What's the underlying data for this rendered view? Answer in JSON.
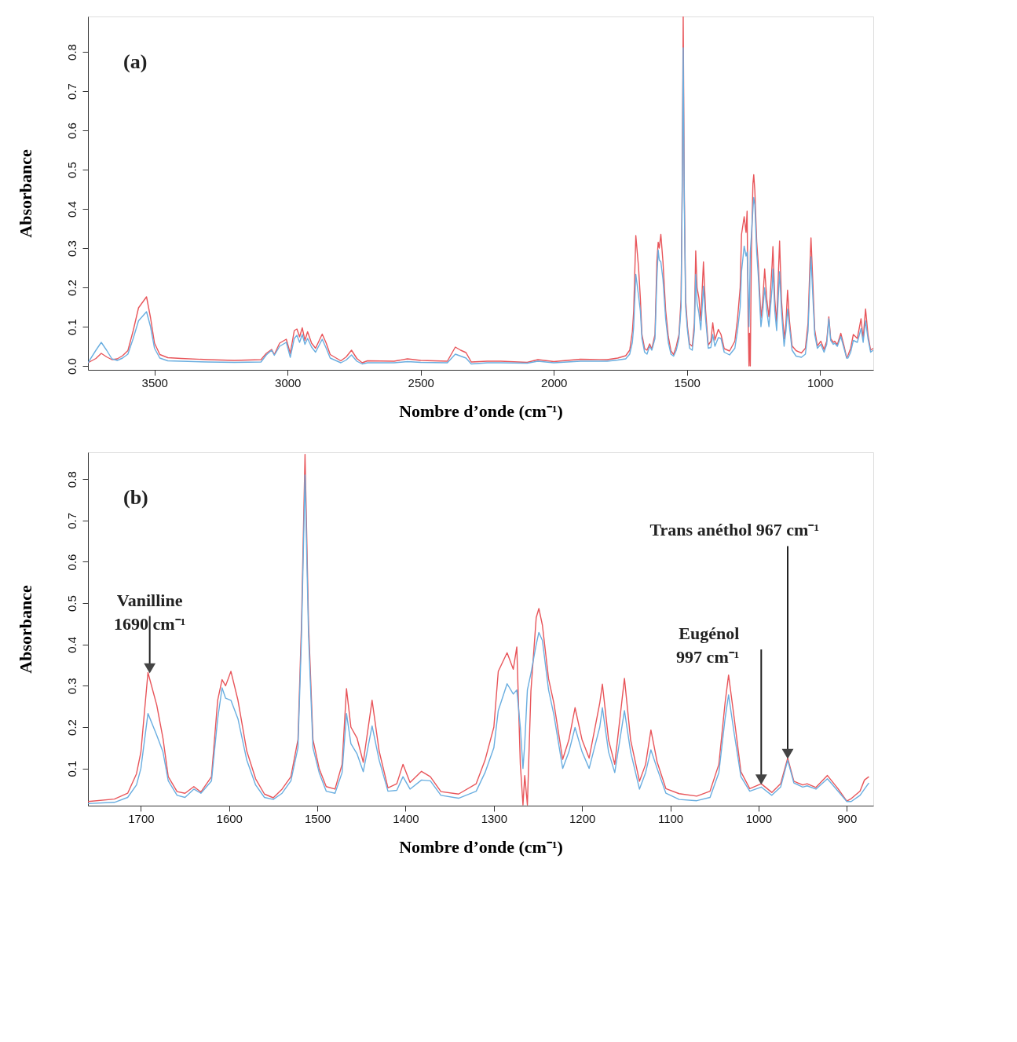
{
  "chart_data": [
    {
      "type": "line",
      "xlabel": "Nombre d’onde (cm⁻¹)",
      "ylabel": "Absorbance",
      "xlim": [
        3750,
        800
      ],
      "ylim": [
        -0.01,
        0.89
      ],
      "xticks": [
        3500,
        3000,
        2500,
        2000,
        1500,
        1000
      ],
      "yticks": [
        {
          "value": 0,
          "label": "0.0"
        },
        0.1,
        0.2,
        0.3,
        0.4,
        0.5,
        0.6,
        0.7,
        0.8
      ],
      "annotations": [
        "(a)"
      ],
      "x": [
        3750,
        3720,
        3700,
        3680,
        3660,
        3640,
        3620,
        3600,
        3580,
        3560,
        3530,
        3515,
        3500,
        3480,
        3450,
        3400,
        3300,
        3200,
        3100,
        3080,
        3060,
        3050,
        3030,
        3005,
        2990,
        2975,
        2965,
        2955,
        2945,
        2935,
        2925,
        2910,
        2895,
        2870,
        2855,
        2840,
        2800,
        2780,
        2760,
        2740,
        2720,
        2700,
        2600,
        2550,
        2500,
        2400,
        2370,
        2350,
        2330,
        2310,
        2250,
        2200,
        2100,
        2060,
        2000,
        1900,
        1800,
        1760,
        1730,
        1715,
        1705,
        1700,
        1692,
        1682,
        1675,
        1669,
        1659,
        1650,
        1640,
        1632,
        1620,
        1613,
        1608,
        1604,
        1598,
        1590,
        1580,
        1570,
        1560,
        1550,
        1540,
        1530,
        1522,
        1518,
        1514,
        1510,
        1505,
        1498,
        1490,
        1480,
        1472,
        1467,
        1462,
        1455,
        1448,
        1438,
        1430,
        1420,
        1410,
        1403,
        1395,
        1382,
        1372,
        1360,
        1340,
        1320,
        1310,
        1300,
        1295,
        1285,
        1278,
        1274,
        1270,
        1267,
        1265,
        1262,
        1258,
        1252,
        1249,
        1245,
        1238,
        1232,
        1222,
        1215,
        1208,
        1200,
        1192,
        1180,
        1177,
        1170,
        1163,
        1152,
        1145,
        1135,
        1128,
        1122,
        1115,
        1105,
        1090,
        1070,
        1055,
        1045,
        1038,
        1034,
        1028,
        1020,
        1010,
        997,
        985,
        975,
        967,
        960,
        950,
        945,
        935,
        922,
        910,
        900,
        895,
        885,
        875,
        860,
        846,
        838,
        829,
        820,
        810,
        800
      ],
      "series": [
        {
          "color": "#e8555a",
          "values": [
            0.008,
            0.019,
            0.032,
            0.023,
            0.016,
            0.018,
            0.026,
            0.039,
            0.09,
            0.148,
            0.176,
            0.123,
            0.058,
            0.029,
            0.021,
            0.019,
            0.016,
            0.014,
            0.016,
            0.032,
            0.042,
            0.029,
            0.058,
            0.068,
            0.032,
            0.09,
            0.094,
            0.074,
            0.097,
            0.065,
            0.087,
            0.058,
            0.045,
            0.081,
            0.058,
            0.029,
            0.013,
            0.023,
            0.04,
            0.019,
            0.008,
            0.013,
            0.012,
            0.018,
            0.014,
            0.012,
            0.048,
            0.04,
            0.034,
            0.01,
            0.012,
            0.012,
            0.009,
            0.016,
            0.011,
            0.017,
            0.016,
            0.02,
            0.026,
            0.04,
            0.087,
            0.14,
            0.332,
            0.253,
            0.173,
            0.08,
            0.044,
            0.04,
            0.056,
            0.043,
            0.08,
            0.265,
            0.315,
            0.3,
            0.335,
            0.265,
            0.142,
            0.075,
            0.038,
            0.029,
            0.05,
            0.08,
            0.17,
            0.45,
            0.89,
            0.45,
            0.17,
            0.1,
            0.056,
            0.05,
            0.11,
            0.293,
            0.2,
            0.173,
            0.115,
            0.265,
            0.142,
            0.053,
            0.063,
            0.11,
            0.066,
            0.093,
            0.08,
            0.044,
            0.038,
            0.063,
            0.12,
            0.2,
            0.335,
            0.38,
            0.34,
            0.394,
            0.11,
            0.0,
            0.083,
            0.0,
            0.287,
            0.465,
            0.487,
            0.447,
            0.317,
            0.258,
            0.122,
            0.169,
            0.247,
            0.169,
            0.125,
            0.258,
            0.304,
            0.169,
            0.11,
            0.318,
            0.169,
            0.069,
            0.11,
            0.193,
            0.116,
            0.051,
            0.039,
            0.033,
            0.045,
            0.11,
            0.258,
            0.326,
            0.228,
            0.092,
            0.051,
            0.063,
            0.042,
            0.063,
            0.125,
            0.069,
            0.06,
            0.063,
            0.054,
            0.083,
            0.051,
            0.021,
            0.027,
            0.045,
            0.08,
            0.07,
            0.12,
            0.07,
            0.145,
            0.08,
            0.04,
            0.045
          ]
        },
        {
          "color": "#6aaee0",
          "values": [
            0.008,
            0.04,
            0.06,
            0.04,
            0.018,
            0.014,
            0.02,
            0.03,
            0.07,
            0.115,
            0.138,
            0.1,
            0.045,
            0.02,
            0.013,
            0.012,
            0.01,
            0.009,
            0.01,
            0.028,
            0.04,
            0.027,
            0.05,
            0.06,
            0.022,
            0.07,
            0.078,
            0.06,
            0.08,
            0.055,
            0.07,
            0.048,
            0.035,
            0.068,
            0.045,
            0.02,
            0.008,
            0.015,
            0.028,
            0.012,
            0.005,
            0.008,
            0.008,
            0.011,
            0.009,
            0.008,
            0.03,
            0.025,
            0.02,
            0.005,
            0.008,
            0.008,
            0.007,
            0.012,
            0.008,
            0.012,
            0.012,
            0.015,
            0.018,
            0.03,
            0.06,
            0.1,
            0.233,
            0.18,
            0.14,
            0.07,
            0.035,
            0.03,
            0.05,
            0.04,
            0.07,
            0.22,
            0.295,
            0.27,
            0.265,
            0.22,
            0.12,
            0.06,
            0.03,
            0.025,
            0.04,
            0.07,
            0.15,
            0.42,
            0.81,
            0.42,
            0.15,
            0.09,
            0.045,
            0.04,
            0.09,
            0.233,
            0.16,
            0.135,
            0.092,
            0.203,
            0.12,
            0.045,
            0.047,
            0.08,
            0.05,
            0.072,
            0.07,
            0.035,
            0.028,
            0.045,
            0.09,
            0.15,
            0.24,
            0.305,
            0.28,
            0.29,
            0.2,
            0.1,
            0.16,
            0.29,
            0.33,
            0.4,
            0.429,
            0.41,
            0.29,
            0.23,
            0.1,
            0.14,
            0.199,
            0.14,
            0.1,
            0.2,
            0.247,
            0.14,
            0.09,
            0.24,
            0.14,
            0.05,
            0.09,
            0.145,
            0.1,
            0.04,
            0.025,
            0.022,
            0.03,
            0.09,
            0.22,
            0.278,
            0.19,
            0.08,
            0.045,
            0.055,
            0.035,
            0.055,
            0.12,
            0.065,
            0.055,
            0.058,
            0.05,
            0.075,
            0.045,
            0.02,
            0.02,
            0.035,
            0.065,
            0.06,
            0.095,
            0.06,
            0.115,
            0.07,
            0.035,
            0.04
          ]
        }
      ]
    },
    {
      "type": "line",
      "xlabel": "Nombre d’onde (cm⁻¹)",
      "ylabel": "Absorbance",
      "xlim": [
        1760,
        870
      ],
      "ylim": [
        0.01,
        0.865
      ],
      "xticks": [
        1700,
        1600,
        1500,
        1400,
        1300,
        1200,
        1100,
        1000,
        900
      ],
      "yticks": [
        0.1,
        0.2,
        0.3,
        0.4,
        0.5,
        0.6,
        0.7,
        0.8
      ],
      "annotations": [
        "(b)",
        {
          "text": "Vanilline\n1690 cm⁻¹",
          "x": 1690,
          "y": 0.332
        },
        {
          "text": "Eugénol\n997 cm⁻¹",
          "x": 997,
          "y": 0.063
        },
        {
          "text": "Trans anéthol 967 cm⁻¹",
          "x": 967,
          "y": 0.125
        }
      ],
      "x": [
        1760,
        1730,
        1715,
        1705,
        1700,
        1692,
        1682,
        1675,
        1669,
        1659,
        1650,
        1640,
        1632,
        1620,
        1613,
        1608,
        1604,
        1598,
        1590,
        1580,
        1570,
        1560,
        1550,
        1540,
        1530,
        1522,
        1518,
        1514,
        1510,
        1505,
        1498,
        1490,
        1480,
        1472,
        1467,
        1462,
        1455,
        1448,
        1438,
        1430,
        1420,
        1410,
        1403,
        1395,
        1382,
        1372,
        1360,
        1340,
        1320,
        1310,
        1300,
        1295,
        1285,
        1278,
        1274,
        1270,
        1267,
        1265,
        1262,
        1258,
        1252,
        1249,
        1245,
        1238,
        1232,
        1222,
        1215,
        1208,
        1200,
        1192,
        1180,
        1177,
        1170,
        1163,
        1152,
        1145,
        1135,
        1128,
        1122,
        1115,
        1105,
        1090,
        1070,
        1055,
        1045,
        1038,
        1034,
        1028,
        1020,
        1010,
        997,
        985,
        975,
        967,
        960,
        950,
        945,
        935,
        922,
        910,
        900,
        895,
        885,
        880,
        875
      ],
      "series": [
        {
          "color": "#e8555a",
          "values": [
            0.02,
            0.026,
            0.04,
            0.087,
            0.14,
            0.332,
            0.253,
            0.173,
            0.08,
            0.044,
            0.04,
            0.056,
            0.043,
            0.08,
            0.265,
            0.315,
            0.3,
            0.335,
            0.265,
            0.142,
            0.075,
            0.038,
            0.029,
            0.05,
            0.08,
            0.17,
            0.45,
            0.86,
            0.45,
            0.17,
            0.1,
            0.056,
            0.05,
            0.11,
            0.293,
            0.2,
            0.173,
            0.115,
            0.265,
            0.142,
            0.053,
            0.063,
            0.11,
            0.066,
            0.093,
            0.08,
            0.044,
            0.038,
            0.063,
            0.12,
            0.2,
            0.335,
            0.38,
            0.34,
            0.394,
            0.11,
            0.012,
            0.083,
            0.012,
            0.287,
            0.465,
            0.487,
            0.447,
            0.317,
            0.258,
            0.122,
            0.169,
            0.247,
            0.169,
            0.125,
            0.258,
            0.304,
            0.169,
            0.11,
            0.318,
            0.169,
            0.069,
            0.11,
            0.193,
            0.116,
            0.051,
            0.039,
            0.033,
            0.045,
            0.11,
            0.258,
            0.326,
            0.228,
            0.092,
            0.051,
            0.063,
            0.042,
            0.063,
            0.125,
            0.069,
            0.06,
            0.063,
            0.054,
            0.083,
            0.051,
            0.021,
            0.027,
            0.045,
            0.072,
            0.08
          ]
        },
        {
          "color": "#6aaee0",
          "values": [
            0.015,
            0.018,
            0.03,
            0.06,
            0.1,
            0.233,
            0.18,
            0.14,
            0.07,
            0.035,
            0.03,
            0.05,
            0.04,
            0.07,
            0.22,
            0.295,
            0.27,
            0.265,
            0.22,
            0.12,
            0.06,
            0.03,
            0.025,
            0.04,
            0.07,
            0.15,
            0.42,
            0.81,
            0.42,
            0.15,
            0.09,
            0.045,
            0.04,
            0.09,
            0.233,
            0.16,
            0.135,
            0.092,
            0.203,
            0.12,
            0.045,
            0.047,
            0.08,
            0.05,
            0.072,
            0.07,
            0.035,
            0.028,
            0.045,
            0.09,
            0.15,
            0.24,
            0.305,
            0.28,
            0.29,
            0.2,
            0.1,
            0.16,
            0.29,
            0.33,
            0.4,
            0.429,
            0.41,
            0.29,
            0.23,
            0.1,
            0.14,
            0.199,
            0.14,
            0.1,
            0.2,
            0.247,
            0.14,
            0.09,
            0.24,
            0.14,
            0.05,
            0.09,
            0.145,
            0.1,
            0.04,
            0.025,
            0.022,
            0.03,
            0.09,
            0.22,
            0.278,
            0.19,
            0.08,
            0.045,
            0.055,
            0.035,
            0.055,
            0.12,
            0.065,
            0.055,
            0.058,
            0.05,
            0.075,
            0.045,
            0.02,
            0.02,
            0.035,
            0.05,
            0.065
          ]
        }
      ]
    }
  ]
}
